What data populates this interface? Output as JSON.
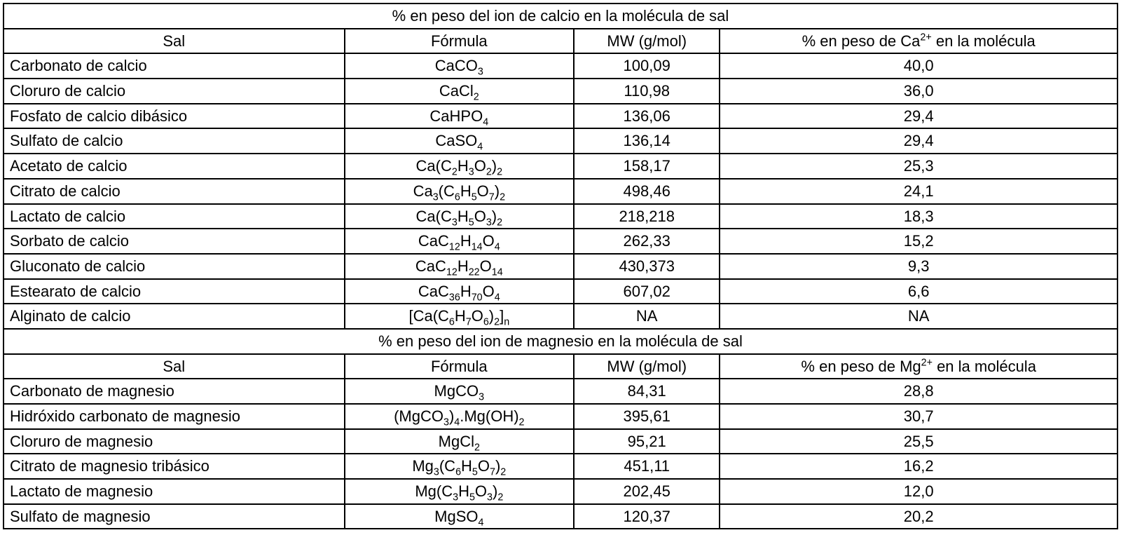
{
  "columns": {
    "widths_pct": [
      30.6,
      20.6,
      13.1,
      35.7
    ]
  },
  "ca": {
    "title": "% en peso del ion de calcio en la molécula de sal",
    "headers": {
      "sal": "Sal",
      "formula": "Fórmula",
      "mw": "MW (g/mol)",
      "pct_html": "% en peso de Ca<sup>2+</sup> en la molécula"
    },
    "rows": [
      {
        "sal": "Carbonato de calcio",
        "formula_html": "CaCO<sub>3</sub>",
        "mw": "100,09",
        "pct": "40,0"
      },
      {
        "sal": "Cloruro de calcio",
        "formula_html": "CaCl<sub>2</sub>",
        "mw": "110,98",
        "pct": "36,0"
      },
      {
        "sal": "Fosfato de calcio dibásico",
        "formula_html": "CaHPO<sub>4</sub>",
        "mw": "136,06",
        "pct": "29,4"
      },
      {
        "sal": "Sulfato de calcio",
        "formula_html": "CaSO<sub>4</sub>",
        "mw": "136,14",
        "pct": "29,4"
      },
      {
        "sal": "Acetato de calcio",
        "formula_html": "Ca(C<sub>2</sub>H<sub>3</sub>O<sub>2</sub>)<sub>2</sub>",
        "mw": "158,17",
        "pct": "25,3"
      },
      {
        "sal": "Citrato de calcio",
        "formula_html": "Ca<sub>3</sub>(C<sub>6</sub>H<sub>5</sub>O<sub>7</sub>)<sub>2</sub>",
        "mw": "498,46",
        "pct": "24,1"
      },
      {
        "sal": "Lactato de calcio",
        "formula_html": "Ca(C<sub>3</sub>H<sub>5</sub>O<sub>3</sub>)<sub>2</sub>",
        "mw": "218,218",
        "pct": "18,3"
      },
      {
        "sal": "Sorbato de calcio",
        "formula_html": "CaC<sub>12</sub>H<sub>14</sub>O<sub>4</sub>",
        "mw": "262,33",
        "pct": "15,2"
      },
      {
        "sal": "Gluconato de calcio",
        "formula_html": "CaC<sub>12</sub>H<sub>22</sub>O<sub>14</sub>",
        "mw": "430,373",
        "pct": "9,3"
      },
      {
        "sal": "Estearato de calcio",
        "formula_html": "CaC<sub>36</sub>H<sub>70</sub>O<sub>4</sub>",
        "mw": "607,02",
        "pct": "6,6"
      },
      {
        "sal": "Alginato de calcio",
        "formula_html": "[Ca(C<sub>6</sub>H<sub>7</sub>O<sub>6</sub>)<sub>2</sub>]<sub>n</sub>",
        "mw": "NA",
        "pct": "NA"
      }
    ]
  },
  "mg": {
    "title": "% en peso del ion de magnesio en la molécula de sal",
    "headers": {
      "sal": "Sal",
      "formula": "Fórmula",
      "mw": "MW (g/mol)",
      "pct_html": "% en peso de Mg<sup>2+</sup> en la molécula"
    },
    "rows": [
      {
        "sal": "Carbonato de magnesio",
        "formula_html": "MgCO<sub>3</sub>",
        "mw": "84,31",
        "pct": "28,8"
      },
      {
        "sal": "Hidróxido carbonato de magnesio",
        "formula_html": "(MgCO<sub>3</sub>)<sub>4</sub>.Mg(OH)<sub>2</sub>",
        "mw": "395,61",
        "pct": "30,7"
      },
      {
        "sal": "Cloruro de magnesio",
        "formula_html": "MgCl<sub>2</sub>",
        "mw": "95,21",
        "pct": "25,5"
      },
      {
        "sal": "Citrato de magnesio tribásico",
        "formula_html": "Mg<sub>3</sub>(C<sub>6</sub>H<sub>5</sub>O<sub>7</sub>)<sub>2</sub>",
        "mw": "451,11",
        "pct": "16,2"
      },
      {
        "sal": "Lactato de magnesio",
        "formula_html": "Mg(C<sub>3</sub>H<sub>5</sub>O<sub>3</sub>)<sub>2</sub>",
        "mw": "202,45",
        "pct": "12,0"
      },
      {
        "sal": "Sulfato de magnesio",
        "formula_html": "MgSO<sub>4</sub>",
        "mw": "120,37",
        "pct": "20,2"
      }
    ]
  }
}
